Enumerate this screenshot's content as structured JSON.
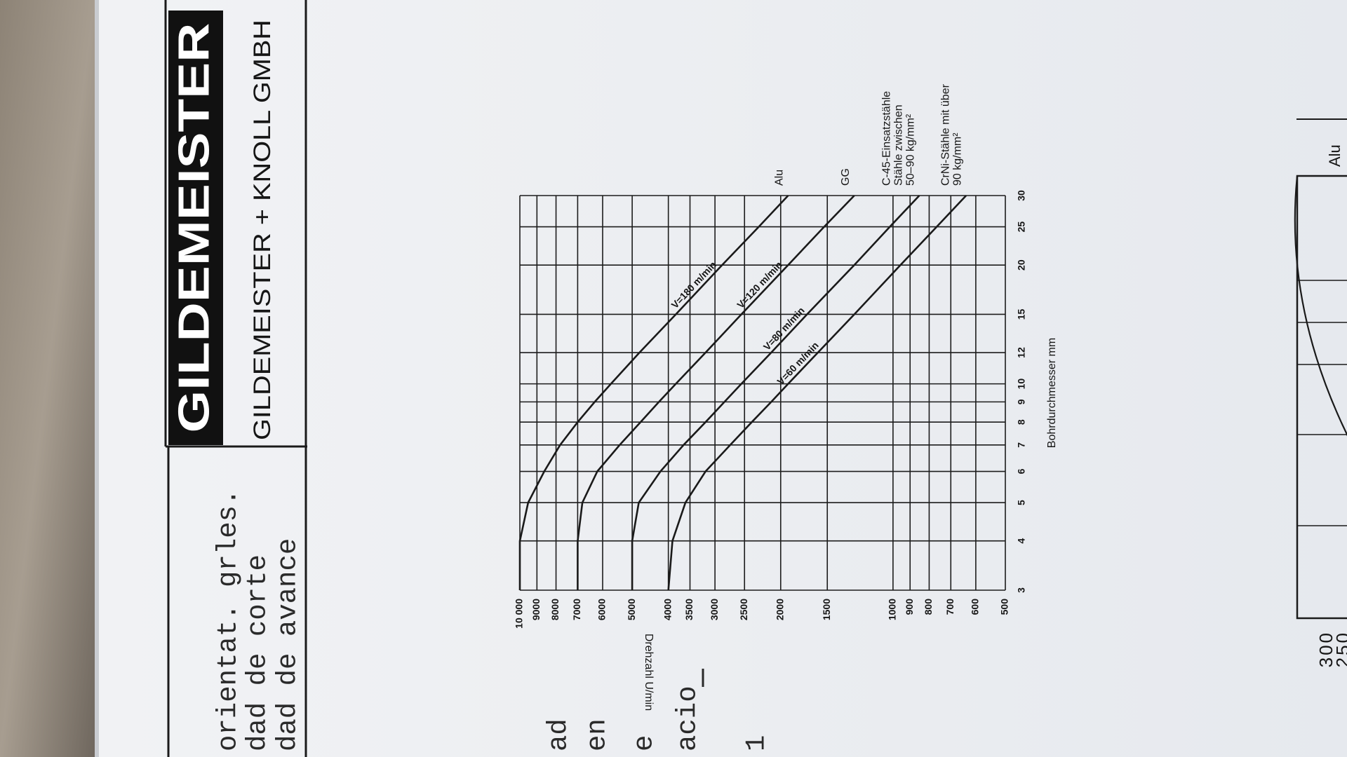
{
  "header": {
    "logo": "GILDEMEISTER",
    "company": "GILDEMEISTER + KNOLL GMBH"
  },
  "text_fragments": [
    "orientat. grles.",
    "dad de corte",
    "dad de avance",
    "ad",
    "en",
    "e",
    "acio",
    "1"
  ],
  "chart_data": {
    "type": "line",
    "x_label": "Bohrdurchmesser mm",
    "y_label": "Drehzahl U/min",
    "x": [
      3,
      4,
      5,
      6,
      7,
      8,
      9,
      10,
      12,
      15,
      20,
      25,
      30
    ],
    "xlim": [
      3,
      30
    ],
    "x_scale": "log",
    "xticks": [
      3,
      4,
      5,
      6,
      7,
      8,
      9,
      10,
      12,
      15,
      20,
      25,
      30
    ],
    "ylim": [
      500,
      10000
    ],
    "y_scale": "log",
    "yticks": [
      {
        "value": 10000,
        "label": "10 000"
      },
      9000,
      8000,
      7000,
      6000,
      5000,
      4000,
      3500,
      3000,
      2500,
      2000,
      1500,
      1000,
      900,
      800,
      700,
      600,
      500
    ],
    "grid": true,
    "series": [
      {
        "name": "V=180 m/min",
        "color": "#1a1a1a",
        "material": [
          "Alu"
        ],
        "values": [
          10000,
          10000,
          9500,
          8600,
          7800,
          7000,
          6300,
          5700,
          4780,
          3820,
          2870,
          2290,
          1910
        ]
      },
      {
        "name": "V=120 m/min",
        "color": "#1a1a1a",
        "material": [
          "GG"
        ],
        "values": [
          7000,
          7000,
          6800,
          6200,
          5400,
          4750,
          4240,
          3820,
          3180,
          2550,
          1910,
          1530,
          1270
        ]
      },
      {
        "name": "V=80 m/min",
        "color": "#1a1a1a",
        "material": [
          "C-45-Einsatzstähle",
          "Stähle zwischen",
          "50–90 kg/mm²"
        ],
        "values": [
          5000,
          5000,
          4800,
          4200,
          3640,
          3180,
          2830,
          2550,
          2120,
          1700,
          1270,
          1020,
          850
        ]
      },
      {
        "name": "V=60 m/min",
        "color": "#1a1a1a",
        "material": [
          "CrNi-Stähle mit über",
          "90 kg/mm²"
        ],
        "values": [
          4000,
          3900,
          3600,
          3180,
          2730,
          2390,
          2120,
          1910,
          1590,
          1270,
          955,
          764,
          637
        ]
      }
    ]
  },
  "fragment": {
    "yticks": [
      300,
      250
    ],
    "label": "Alu"
  }
}
